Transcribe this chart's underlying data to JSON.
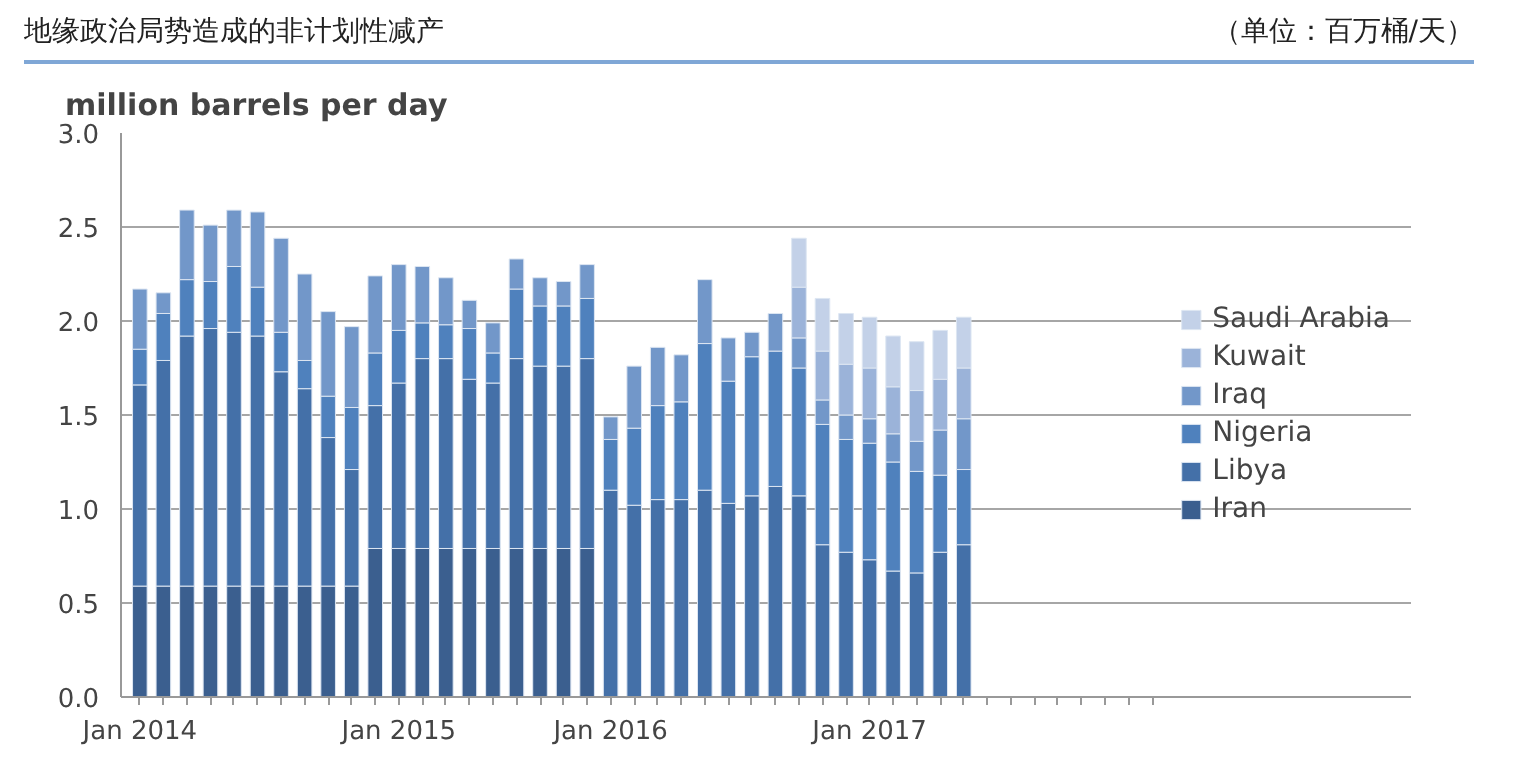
{
  "chart_data": {
    "type": "bar",
    "stacked": true,
    "title": "地缘政治局势造成的非计划性减产",
    "subtitle": "（单位：百万桶/天）",
    "ylabel": "million barrels per day",
    "categories": [
      "Jan 2014",
      null,
      null,
      null,
      null,
      null,
      null,
      null,
      null,
      null,
      null,
      "Jan 2015",
      null,
      null,
      null,
      null,
      null,
      null,
      null,
      null,
      "Jan 2016",
      null,
      null,
      null,
      null,
      null,
      null,
      null,
      null,
      null,
      null,
      "Jan 2017",
      null,
      null,
      null,
      null,
      null,
      null,
      null,
      null,
      null,
      null,
      null,
      null
    ],
    "series": [
      {
        "name": "Iran",
        "color": "#3b5f8f",
        "values": [
          0.59,
          0.59,
          0.59,
          0.59,
          0.59,
          0.59,
          0.59,
          0.59,
          0.59,
          0.59,
          0.79,
          0.79,
          0.79,
          0.79,
          0.79,
          0.79,
          0.79,
          0.79,
          0.79,
          0.79,
          null,
          null,
          null,
          null,
          null,
          null,
          null,
          null,
          null,
          null,
          null,
          null,
          null,
          null,
          null,
          null,
          null,
          null,
          null,
          null,
          null,
          null,
          null,
          null
        ]
      },
      {
        "name": "Libya",
        "color": "#4470a8",
        "values": [
          1.07,
          1.2,
          1.33,
          1.37,
          1.35,
          1.33,
          1.14,
          1.05,
          0.79,
          0.62,
          0.76,
          0.88,
          1.01,
          1.01,
          0.9,
          0.88,
          1.01,
          0.97,
          0.97,
          1.01,
          1.1,
          1.02,
          1.05,
          1.05,
          1.1,
          1.03,
          1.07,
          1.12,
          1.07,
          0.81,
          0.77,
          0.73,
          0.67,
          0.66,
          0.77,
          0.81,
          null,
          null,
          null,
          null,
          null,
          null,
          null,
          null
        ]
      },
      {
        "name": "Nigeria",
        "color": "#4f81bd",
        "values": [
          0.19,
          0.25,
          0.3,
          0.25,
          0.35,
          0.26,
          0.21,
          0.15,
          0.22,
          0.33,
          0.28,
          0.28,
          0.19,
          0.18,
          0.27,
          0.16,
          0.37,
          0.32,
          0.32,
          0.32,
          0.27,
          0.41,
          0.5,
          0.52,
          0.78,
          0.65,
          0.74,
          0.72,
          0.68,
          0.64,
          0.6,
          0.62,
          0.58,
          0.54,
          0.41,
          0.4,
          null,
          null,
          null,
          null,
          null,
          null,
          null,
          null
        ]
      },
      {
        "name": "Iraq",
        "color": "#7297c9",
        "values": [
          0.32,
          0.11,
          0.37,
          0.3,
          0.3,
          0.4,
          0.5,
          0.46,
          0.45,
          0.43,
          0.41,
          0.35,
          0.3,
          0.25,
          0.15,
          0.16,
          0.16,
          0.15,
          0.13,
          0.18,
          0.12,
          0.33,
          0.31,
          0.25,
          0.34,
          0.23,
          0.13,
          0.2,
          0.16,
          0.13,
          0.13,
          0.13,
          0.15,
          0.16,
          0.24,
          0.27,
          null,
          null,
          null,
          null,
          null,
          null,
          null,
          null
        ]
      },
      {
        "name": "Kuwait",
        "color": "#9bb3d9",
        "values": [
          null,
          null,
          null,
          null,
          null,
          null,
          null,
          null,
          null,
          null,
          null,
          null,
          null,
          null,
          null,
          null,
          null,
          null,
          null,
          null,
          null,
          null,
          null,
          null,
          null,
          null,
          null,
          null,
          0.27,
          0.26,
          0.27,
          0.27,
          0.25,
          0.27,
          0.27,
          0.27,
          null,
          null,
          null,
          null,
          null,
          null,
          null,
          null
        ]
      },
      {
        "name": "Saudi Arabia",
        "color": "#c3d1e8",
        "values": [
          null,
          null,
          null,
          null,
          null,
          null,
          null,
          null,
          null,
          null,
          null,
          null,
          null,
          null,
          null,
          null,
          null,
          null,
          null,
          null,
          null,
          null,
          null,
          null,
          null,
          null,
          null,
          null,
          0.26,
          0.28,
          0.27,
          0.27,
          0.27,
          0.26,
          0.26,
          0.27,
          null,
          null,
          null,
          null,
          null,
          null,
          null,
          null
        ]
      }
    ],
    "ylim": [
      0,
      3
    ],
    "yticks": [
      {
        "value": 0,
        "label": "0.0"
      },
      {
        "value": 0.5,
        "label": "0.5"
      },
      {
        "value": 1,
        "label": "1.0"
      },
      {
        "value": 1.5,
        "label": "1.5"
      },
      {
        "value": 2,
        "label": "2.0"
      },
      {
        "value": 2.5,
        "label": "2.5"
      },
      {
        "value": 3,
        "label": "3.0"
      }
    ],
    "grid": "y",
    "legend": "right"
  }
}
